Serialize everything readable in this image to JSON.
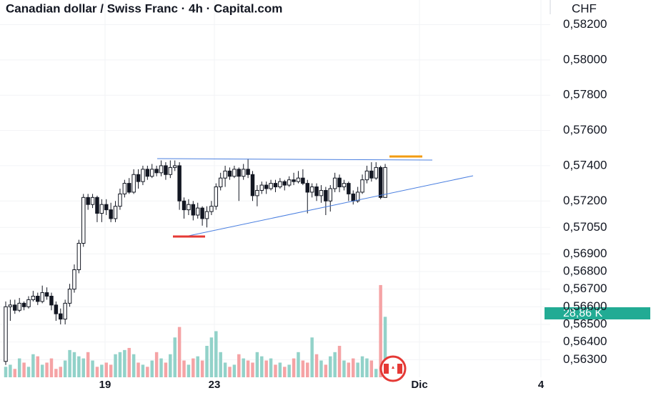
{
  "chart_data": {
    "type": "candlestick",
    "title": "Canadian dollar / Swiss Franc · 4h · Capital.com",
    "currency": "CHF",
    "open": [
      0.5629,
      0.566,
      0.5661,
      0.5658,
      0.5662,
      0.566,
      0.5664,
      0.5666,
      0.5663,
      0.5668,
      0.5666,
      0.5661,
      0.5656,
      0.5653,
      0.5662,
      0.567,
      0.5681,
      0.5696,
      0.5722,
      0.5718,
      0.5722,
      0.5713,
      0.5718,
      0.5715,
      0.571,
      0.5717,
      0.5724,
      0.573,
      0.5725,
      0.5735,
      0.5731,
      0.5738,
      0.5734,
      0.5738,
      0.5736,
      0.574,
      0.5735,
      0.5739,
      0.574,
      0.572,
      0.5715,
      0.5718,
      0.5712,
      0.5716,
      0.571,
      0.5714,
      0.5717,
      0.5728,
      0.5733,
      0.5737,
      0.5734,
      0.5738,
      0.5734,
      0.5738,
      0.5735,
      0.5723,
      0.5726,
      0.5729,
      0.5727,
      0.573,
      0.5728,
      0.5731,
      0.5729,
      0.5732,
      0.5731,
      0.5733,
      0.573,
      0.5725,
      0.5728,
      0.5723,
      0.5726,
      0.572,
      0.5727,
      0.5733,
      0.5728,
      0.573,
      0.5724,
      0.572,
      0.5725,
      0.5732,
      0.5737,
      0.5733,
      0.5739,
      0.5722
    ],
    "high": [
      0.5663,
      0.5664,
      0.5664,
      0.5665,
      0.5663,
      0.5666,
      0.5669,
      0.5668,
      0.5672,
      0.5671,
      0.5668,
      0.5663,
      0.5659,
      0.5664,
      0.5673,
      0.5684,
      0.5698,
      0.5724,
      0.5724,
      0.5724,
      0.5723,
      0.5721,
      0.5721,
      0.5719,
      0.572,
      0.5727,
      0.5732,
      0.5733,
      0.5738,
      0.5738,
      0.574,
      0.574,
      0.5741,
      0.574,
      0.5743,
      0.5742,
      0.5743,
      0.5743,
      0.5742,
      0.5722,
      0.5721,
      0.572,
      0.5719,
      0.5717,
      0.5717,
      0.572,
      0.573,
      0.5736,
      0.574,
      0.5739,
      0.574,
      0.5739,
      0.5741,
      0.5744,
      0.5737,
      0.5729,
      0.5731,
      0.5731,
      0.5732,
      0.5732,
      0.5733,
      0.5732,
      0.5734,
      0.5736,
      0.5737,
      0.5738,
      0.5732,
      0.573,
      0.573,
      0.5729,
      0.5728,
      0.5729,
      0.5736,
      0.5735,
      0.5732,
      0.5731,
      0.5726,
      0.5728,
      0.5735,
      0.574,
      0.5742,
      0.5742,
      0.574,
      0.5741
    ],
    "low": [
      0.5627,
      0.5652,
      0.5656,
      0.5657,
      0.5658,
      0.5659,
      0.5663,
      0.5661,
      0.5662,
      0.5664,
      0.5658,
      0.5652,
      0.565,
      0.565,
      0.566,
      0.5668,
      0.5679,
      0.5694,
      0.5715,
      0.5716,
      0.5708,
      0.5708,
      0.5712,
      0.5708,
      0.5708,
      0.5715,
      0.5722,
      0.5724,
      0.5724,
      0.5727,
      0.5729,
      0.5732,
      0.5733,
      0.5734,
      0.5734,
      0.5732,
      0.5733,
      0.5737,
      0.5715,
      0.571,
      0.5712,
      0.5709,
      0.571,
      0.5706,
      0.5705,
      0.5712,
      0.5715,
      0.5726,
      0.5728,
      0.5732,
      0.5733,
      0.572,
      0.5732,
      0.5733,
      0.572,
      0.5717,
      0.5724,
      0.5724,
      0.5726,
      0.5725,
      0.5727,
      0.5726,
      0.5728,
      0.5729,
      0.573,
      0.5729,
      0.5713,
      0.5722,
      0.572,
      0.5719,
      0.5712,
      0.5714,
      0.5725,
      0.5725,
      0.5726,
      0.572,
      0.5718,
      0.5719,
      0.5724,
      0.573,
      0.5731,
      0.5732,
      0.5721,
      0.5722
    ],
    "close": [
      0.566,
      0.5661,
      0.5658,
      0.5662,
      0.566,
      0.5664,
      0.5666,
      0.5663,
      0.5668,
      0.5666,
      0.5661,
      0.5656,
      0.5653,
      0.5662,
      0.567,
      0.5681,
      0.5696,
      0.5722,
      0.5718,
      0.5722,
      0.5713,
      0.5718,
      0.5715,
      0.571,
      0.5717,
      0.5724,
      0.573,
      0.5725,
      0.5735,
      0.5731,
      0.5738,
      0.5734,
      0.5738,
      0.5736,
      0.574,
      0.5735,
      0.5739,
      0.574,
      0.572,
      0.5715,
      0.5718,
      0.5712,
      0.5716,
      0.571,
      0.5714,
      0.5717,
      0.5728,
      0.5733,
      0.5737,
      0.5734,
      0.5738,
      0.5734,
      0.5738,
      0.5735,
      0.5723,
      0.5726,
      0.5729,
      0.5727,
      0.573,
      0.5728,
      0.5731,
      0.5729,
      0.5732,
      0.5731,
      0.5733,
      0.573,
      0.5725,
      0.5728,
      0.5723,
      0.5726,
      0.572,
      0.5727,
      0.5733,
      0.5728,
      0.573,
      0.5724,
      0.572,
      0.5725,
      0.5732,
      0.5737,
      0.5733,
      0.5739,
      0.5722,
      0.5739
    ],
    "volume": [
      5,
      6,
      4,
      9,
      7,
      5,
      11,
      10,
      6,
      7,
      9,
      4,
      5,
      8,
      13,
      12,
      10,
      9,
      12,
      8,
      5,
      6,
      7,
      6,
      11,
      12,
      13,
      14,
      11,
      7,
      6,
      5,
      8,
      12,
      9,
      7,
      11,
      19,
      24,
      8,
      6,
      9,
      10,
      8,
      15,
      19,
      22,
      12,
      7,
      5,
      6,
      11,
      9,
      8,
      7,
      12,
      10,
      8,
      9,
      6,
      7,
      5,
      6,
      9,
      12,
      8,
      7,
      19,
      11,
      8,
      6,
      10,
      12,
      15,
      8,
      7,
      9,
      7,
      10,
      9,
      8,
      4,
      44,
      28.86
    ],
    "volume_value_labels": [
      null,
      null,
      null,
      null,
      null,
      null,
      null,
      null,
      null,
      null,
      null,
      null,
      null,
      null,
      null,
      null,
      null,
      null,
      null,
      null,
      null,
      null,
      null,
      null,
      null,
      null,
      null,
      null,
      null,
      null,
      null,
      null,
      null,
      null,
      null,
      null,
      null,
      null,
      null,
      null,
      null,
      null,
      null,
      null,
      null,
      null,
      null,
      null,
      null,
      null,
      null,
      null,
      null,
      null,
      null,
      null,
      null,
      null,
      null,
      null,
      null,
      null,
      null,
      null,
      null,
      null,
      null,
      null,
      null,
      null,
      null,
      null,
      null,
      null,
      null,
      null,
      null,
      null,
      null,
      null,
      null,
      null,
      null,
      "28,86 K"
    ],
    "up_color": "#ffffff",
    "down_color": "#131722",
    "volume_up_color": "#92d2c9",
    "volume_down_color": "#f5a3a5",
    "volume_label_color": "#22ab94",
    "volume_ylim": [
      0,
      180
    ],
    "xlim": [
      -1.25,
      119.1
    ],
    "xticks": [
      {
        "value": 21.73,
        "label": "19"
      },
      {
        "value": 45.64,
        "label": "23"
      },
      {
        "value": 90.5,
        "label": "Dic"
      },
      {
        "value": 117.07,
        "label": "4"
      }
    ],
    "ylim": [
      0.562,
      0.5834
    ],
    "yticks": [
      {
        "value": 0.582,
        "label": "0,58200"
      },
      {
        "value": 0.58,
        "label": "0,58000"
      },
      {
        "value": 0.578,
        "label": "0,57800"
      },
      {
        "value": 0.576,
        "label": "0,57600"
      },
      {
        "value": 0.574,
        "label": "0,57400"
      },
      {
        "value": 0.572,
        "label": "0,57200"
      },
      {
        "value": 0.5705,
        "label": "0,57050"
      },
      {
        "value": 0.569,
        "label": "0,56900"
      },
      {
        "value": 0.568,
        "label": "0,56800"
      },
      {
        "value": 0.567,
        "label": "0,56700"
      },
      {
        "value": 0.566,
        "label": "0,56600"
      },
      {
        "value": 0.565,
        "label": "0,56500"
      },
      {
        "value": 0.564,
        "label": "0,56400"
      },
      {
        "value": 0.563,
        "label": "0,56300"
      }
    ],
    "grid": true
  }
}
